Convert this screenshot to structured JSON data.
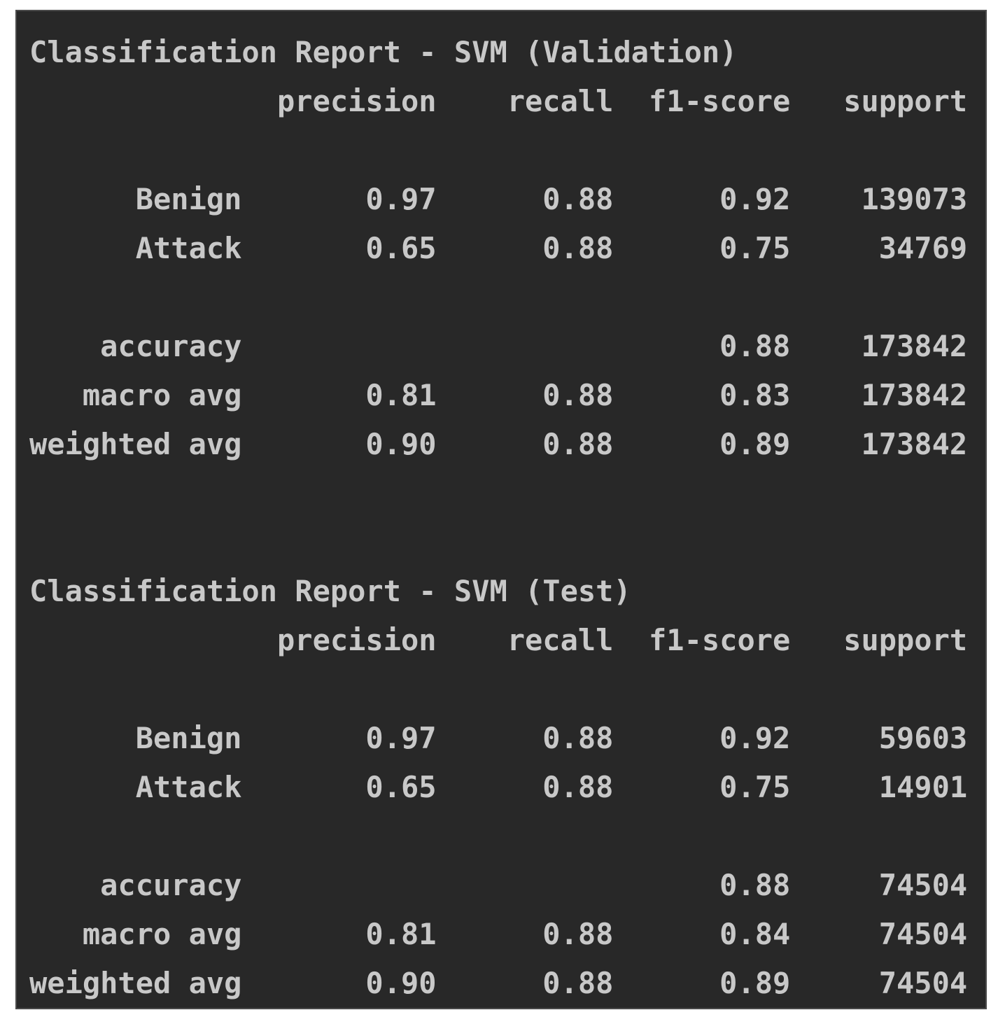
{
  "page": {
    "outer_background_color": "#ffffff"
  },
  "terminal": {
    "background_color": "#282828",
    "border_color": "#4b4b4b",
    "text_color": "#c8c8c8",
    "reports": [
      {
        "title": "Classification Report - SVM (Validation)",
        "columns": [
          "precision",
          "recall",
          "f1-score",
          "support"
        ],
        "sections": [
          {
            "rows": [
              {
                "label": "Benign",
                "values": [
                  "0.97",
                  "0.88",
                  "0.92",
                  "139073"
                ]
              },
              {
                "label": "Attack",
                "values": [
                  "0.65",
                  "0.88",
                  "0.75",
                  "34769"
                ]
              }
            ]
          },
          {
            "rows": [
              {
                "label": "accuracy",
                "values": [
                  "",
                  "",
                  "0.88",
                  "173842"
                ]
              },
              {
                "label": "macro avg",
                "values": [
                  "0.81",
                  "0.88",
                  "0.83",
                  "173842"
                ]
              },
              {
                "label": "weighted avg",
                "values": [
                  "0.90",
                  "0.88",
                  "0.89",
                  "173842"
                ]
              }
            ]
          }
        ]
      },
      {
        "title": "Classification Report - SVM (Test)",
        "columns": [
          "precision",
          "recall",
          "f1-score",
          "support"
        ],
        "sections": [
          {
            "rows": [
              {
                "label": "Benign",
                "values": [
                  "0.97",
                  "0.88",
                  "0.92",
                  "59603"
                ]
              },
              {
                "label": "Attack",
                "values": [
                  "0.65",
                  "0.88",
                  "0.75",
                  "14901"
                ]
              }
            ]
          },
          {
            "rows": [
              {
                "label": "accuracy",
                "values": [
                  "",
                  "",
                  "0.88",
                  "74504"
                ]
              },
              {
                "label": "macro avg",
                "values": [
                  "0.81",
                  "0.88",
                  "0.84",
                  "74504"
                ]
              },
              {
                "label": "weighted avg",
                "values": [
                  "0.90",
                  "0.88",
                  "0.89",
                  "74504"
                ]
              }
            ]
          }
        ]
      }
    ]
  }
}
